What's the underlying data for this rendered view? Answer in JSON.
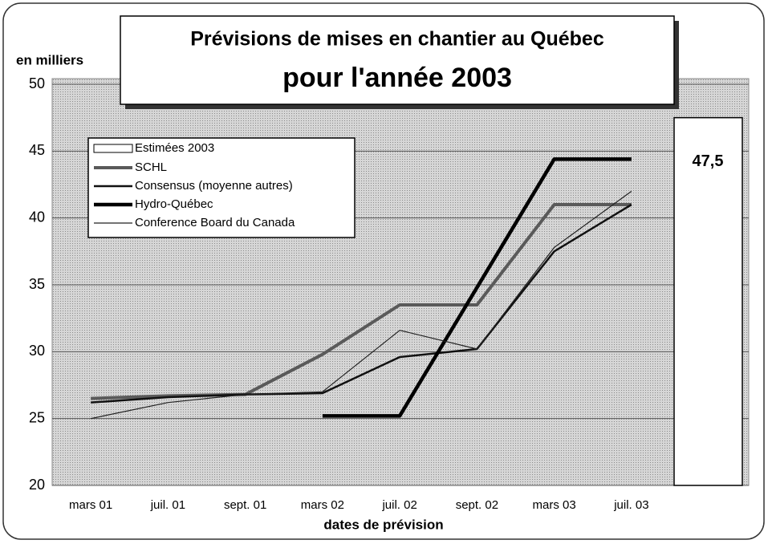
{
  "chart_data": {
    "type": "line",
    "title": "Prévisions de mises en chantier au Québec",
    "subtitle": "pour l'année 2003",
    "y_label": "en milliers",
    "x_label": "dates de prévision",
    "categories": [
      "mars 01",
      "juil. 01",
      "sept. 01",
      "mars 02",
      "juil. 02",
      "sept. 02",
      "mars 03",
      "juil. 03"
    ],
    "series": [
      {
        "name": "SCHL",
        "color": "#5a5a5a",
        "width": 4,
        "values": [
          26.5,
          26.7,
          26.8,
          29.8,
          33.5,
          33.5,
          41.0,
          41.0
        ]
      },
      {
        "name": "Consensus (moyenne autres)",
        "color": "#111111",
        "width": 2.5,
        "values": [
          26.2,
          26.6,
          26.8,
          26.9,
          29.6,
          30.2,
          37.5,
          41.0
        ]
      },
      {
        "name": "Hydro-Québec",
        "color": "#000000",
        "width": 4.5,
        "values": [
          null,
          null,
          null,
          25.2,
          25.2,
          34.8,
          44.4,
          44.4
        ]
      },
      {
        "name": "Conference Board du Canada",
        "color": "#222222",
        "width": 1.2,
        "values": [
          25.0,
          26.2,
          26.8,
          27.0,
          31.6,
          30.2,
          37.8,
          42.0
        ]
      }
    ],
    "estimate": {
      "name": "Estimées 2003",
      "value": 47.5,
      "value_label": "47,5"
    },
    "ylim": [
      20,
      50
    ],
    "yticks": [
      20,
      25,
      30,
      35,
      40,
      45,
      50
    ],
    "grid": true
  }
}
